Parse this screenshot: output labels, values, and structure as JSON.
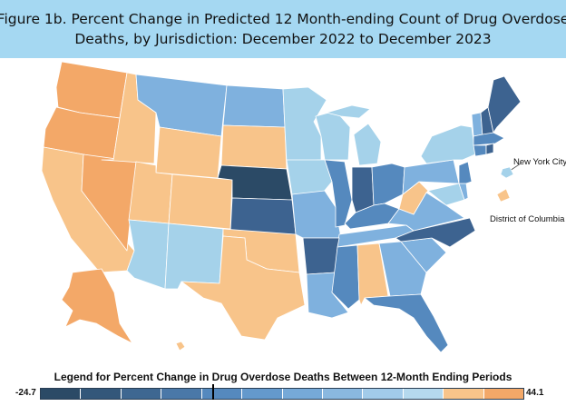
{
  "title": {
    "line1": "Figure 1b. Percent Change in Predicted 12 Month-ending Count of Drug Overdose",
    "line2": "Deaths, by Jurisdiction: December 2022 to December 2023"
  },
  "callouts": {
    "nyc": "New York City",
    "dc": "District of Columbia"
  },
  "legend": {
    "title": "Legend for Percent Change in Drug Overdose Deaths Between 12-Month Ending Periods",
    "min": "-24.7",
    "max": "44.1",
    "min_value": -24.7,
    "max_value": 44.1,
    "zero_value": 0,
    "colors": [
      "#2b4a66",
      "#33577a",
      "#3e6791",
      "#4a78a8",
      "#5589be",
      "#6499cc",
      "#76a9d8",
      "#8ab8e0",
      "#a2cbea",
      "#b5d9ee",
      "#f8c48a",
      "#f3a868"
    ]
  },
  "palette": {
    "darkest": "#2b4a66",
    "dark": "#3d6390",
    "mid": "#5589be",
    "light_blue": "#7fb1de",
    "pale_blue": "#a5d2ea",
    "light_orange": "#f8c48a",
    "orange": "#f3a868"
  }
}
